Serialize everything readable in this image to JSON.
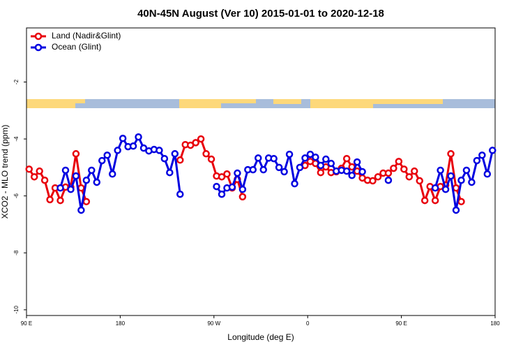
{
  "chart_data": {
    "type": "line",
    "title": "40N-45N August (Ver 10)   2015-01-01 to 2020-12-18",
    "x_label": "Longitude (deg E)",
    "y_label": "XCO2 - MLO trend (ppm)",
    "xlim": [
      90,
      540
    ],
    "xticks": [
      {
        "value": 90,
        "label": "90 E"
      },
      180,
      {
        "value": 270,
        "label": "90 W"
      },
      {
        "value": 360,
        "label": "0"
      },
      {
        "value": 450,
        "label": "90 E"
      },
      {
        "value": 540,
        "label": "180"
      }
    ],
    "ylim": [
      -10.2,
      -0.1
    ],
    "yticks": [
      -10,
      -8,
      -6,
      -4,
      -2
    ],
    "legend": "top-left",
    "x": [
      92.5,
      97.5,
      102.5,
      107.5,
      112.5,
      117.5,
      122.5,
      127.5,
      132.5,
      137.5,
      142.5,
      147.5,
      152.5,
      157.5,
      162.5,
      167.5,
      172.5,
      177.5,
      182.5,
      187.5,
      192.5,
      197.5,
      202.5,
      207.5,
      212.5,
      217.5,
      222.5,
      227.5,
      232.5,
      237.5,
      242.5,
      247.5,
      252.5,
      257.5,
      262.5,
      267.5,
      272.5,
      277.5,
      282.5,
      287.5,
      292.5,
      297.5,
      302.5,
      307.5,
      312.5,
      317.5,
      322.5,
      327.5,
      332.5,
      337.5,
      342.5,
      347.5,
      352.5,
      357.5,
      362.5,
      367.5,
      372.5,
      377.5,
      382.5,
      387.5,
      392.5,
      397.5,
      402.5,
      407.5,
      412.5,
      417.5,
      422.5,
      427.5,
      432.5,
      437.5,
      442.5,
      447.5,
      452.5,
      457.5,
      462.5,
      467.5,
      472.5,
      477.5,
      482.5,
      487.5,
      492.5,
      497.5,
      502.5,
      507.5,
      512.5,
      517.5,
      522.5,
      527.5,
      532.5,
      537.5
    ],
    "series": [
      {
        "name": "Land (Nadir&Glint)",
        "color": "#e8000b",
        "values": [
          -5.06,
          -5.33,
          -5.13,
          -5.45,
          -6.13,
          -5.72,
          -6.16,
          -5.69,
          -5.69,
          -4.52,
          -5.72,
          -6.2,
          null,
          null,
          null,
          null,
          null,
          null,
          null,
          null,
          null,
          null,
          null,
          null,
          null,
          null,
          null,
          null,
          null,
          -4.74,
          -4.2,
          -4.22,
          -4.13,
          -4.0,
          -4.52,
          -4.71,
          -5.3,
          -5.33,
          -5.23,
          -5.72,
          -5.42,
          -6.03,
          null,
          null,
          null,
          null,
          null,
          null,
          null,
          null,
          null,
          null,
          null,
          -4.93,
          -4.79,
          -4.86,
          -5.18,
          -4.98,
          -5.18,
          -5.15,
          -5.03,
          -4.69,
          -4.98,
          -5.13,
          -5.37,
          -5.45,
          -5.47,
          -5.33,
          -5.2,
          -5.2,
          -5.03,
          -4.79,
          -5.06,
          -5.33,
          -5.13,
          -5.47,
          -6.16,
          -5.67,
          -6.16,
          -5.67,
          -5.62,
          -4.52,
          -5.72,
          -6.2,
          null,
          null,
          null,
          null,
          null,
          null
        ]
      },
      {
        "name": "Ocean (Glint)",
        "color": "#0000e0",
        "values": [
          null,
          null,
          null,
          null,
          null,
          null,
          -5.72,
          -5.1,
          -5.77,
          -5.3,
          -6.5,
          -5.45,
          -5.1,
          -5.52,
          -4.76,
          -4.57,
          -5.23,
          -4.4,
          -3.98,
          -4.27,
          -4.25,
          -3.93,
          -4.32,
          -4.42,
          -4.37,
          -4.4,
          -4.69,
          -5.18,
          -4.52,
          -5.94,
          null,
          null,
          null,
          null,
          null,
          null,
          -5.67,
          -5.94,
          -5.72,
          -5.69,
          -5.2,
          -5.77,
          -5.08,
          -5.08,
          -4.67,
          -5.08,
          -4.67,
          -4.69,
          -5.0,
          -5.15,
          -4.54,
          -5.57,
          -5.0,
          -4.67,
          -4.54,
          -4.64,
          -4.93,
          -4.71,
          -4.86,
          -5.13,
          -5.1,
          -5.13,
          -5.28,
          -4.81,
          -5.15,
          null,
          null,
          null,
          null,
          -5.45,
          null,
          null,
          null,
          null,
          null,
          null,
          null,
          null,
          -5.72,
          -5.1,
          -5.77,
          -5.3,
          -6.5,
          -5.45,
          -5.1,
          -5.52,
          -4.76,
          -4.57,
          -5.23,
          -4.4
        ]
      }
    ]
  }
}
